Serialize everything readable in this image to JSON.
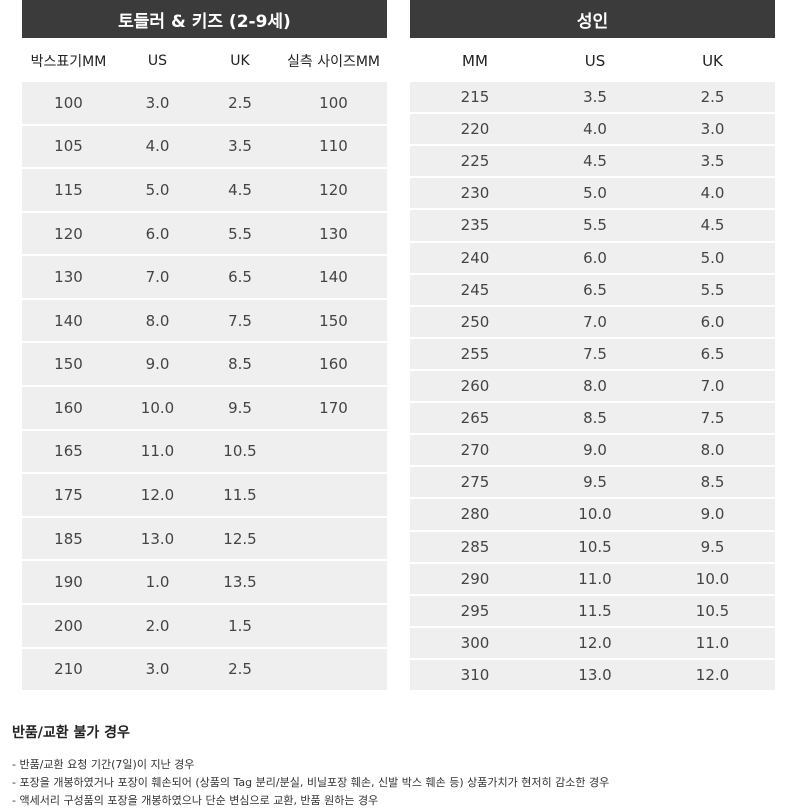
{
  "tables": [
    {
      "title": "토들러 & 키즈 (2-9세)",
      "columns": [
        "박스표기MM",
        "US",
        "UK",
        "실측 사이즈MM"
      ],
      "rows": [
        [
          "100",
          "3.0",
          "2.5",
          "100"
        ],
        [
          "105",
          "4.0",
          "3.5",
          "110"
        ],
        [
          "115",
          "5.0",
          "4.5",
          "120"
        ],
        [
          "120",
          "6.0",
          "5.5",
          "130"
        ],
        [
          "130",
          "7.0",
          "6.5",
          "140"
        ],
        [
          "140",
          "8.0",
          "7.5",
          "150"
        ],
        [
          "150",
          "9.0",
          "8.5",
          "160"
        ],
        [
          "160",
          "10.0",
          "9.5",
          "170"
        ],
        [
          "165",
          "11.0",
          "10.5"
        ],
        [
          "175",
          "12.0",
          "11.5"
        ],
        [
          "185",
          "13.0",
          "12.5"
        ],
        [
          "190",
          "1.0",
          "13.5"
        ],
        [
          "200",
          "2.0",
          "1.5"
        ],
        [
          "210",
          "3.0",
          "2.5"
        ]
      ]
    },
    {
      "title": "성인",
      "columns": [
        "MM",
        "US",
        "UK"
      ],
      "rows": [
        [
          "215",
          "3.5",
          "2.5"
        ],
        [
          "220",
          "4.0",
          "3.0"
        ],
        [
          "225",
          "4.5",
          "3.5"
        ],
        [
          "230",
          "5.0",
          "4.0"
        ],
        [
          "235",
          "5.5",
          "4.5"
        ],
        [
          "240",
          "6.0",
          "5.0"
        ],
        [
          "245",
          "6.5",
          "5.5"
        ],
        [
          "250",
          "7.0",
          "6.0"
        ],
        [
          "255",
          "7.5",
          "6.5"
        ],
        [
          "260",
          "8.0",
          "7.0"
        ],
        [
          "265",
          "8.5",
          "7.5"
        ],
        [
          "270",
          "9.0",
          "8.0"
        ],
        [
          "275",
          "9.5",
          "8.5"
        ],
        [
          "280",
          "10.0",
          "9.0"
        ],
        [
          "285",
          "10.5",
          "9.5"
        ],
        [
          "290",
          "11.0",
          "10.0"
        ],
        [
          "295",
          "11.5",
          "10.5"
        ],
        [
          "300",
          "12.0",
          "11.0"
        ],
        [
          "310",
          "13.0",
          "12.0"
        ]
      ]
    }
  ],
  "notice": {
    "title": "반품/교환 불가 경우",
    "items": [
      "- 반품/교환 요청 기간(7일)이 지난 경우",
      "- 포장을 개봉하였거나 포장이 훼손되어 (상품의 Tag 분리/분실, 비닐포장 훼손, 신발 박스 훼손 등) 상품가치가 현저히 감소한 경우",
      "- 액세서리 구성품의 포장을 개봉하였으나 단순 변심으로 교환, 반품 원하는 경우"
    ]
  }
}
